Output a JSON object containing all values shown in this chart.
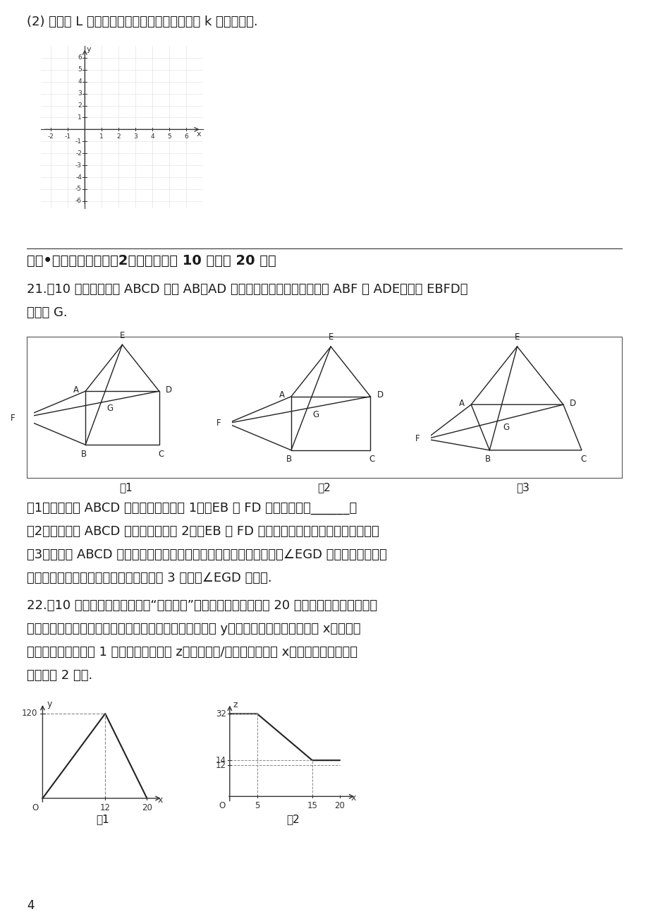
{
  "bg_color": "#ffffff",
  "text_color": "#000000",
  "page_number": "4",
  "section_title": "六、•解答题（本大题共2小题，每小题 10 分，共 20 分）",
  "q2_label": "(2) 当直线 L 与正方形有两个交点时，直接写出 k 的取値范围.",
  "q21_line1": "21.（10 分）以四边形 ABCD 的边 AB、AD 为边分别向外侧作等边三角形 ABF 和 ADE，连接 EBFD，",
  "q21_line2": "交点为 G.",
  "q21_sub1": "（1）当四边形 ABCD 为正方形时（如图 1），EB 和 FD 的数量关系是______；",
  "q21_sub2": "（2）当四边形 ABCD 为矩形时（如图 2），EB 和 FD 具有怎样的数量关系？请加以证明；",
  "q21_sub3a": "（3）四边形 ABCD 由正方形到矩形到一般平行四边形的变化过程中，∠EGD 是否发生变化？如",
  "q21_sub3b": "果改变，请说明理由；如果不变，请在图 3 中求出∠EGD 的度数.",
  "q22_line1": "22.（10 分）李刚家去年养殖的“丰收一号”多宝鱼喜获丰收，上市 20 天全部售完，李刚对销售",
  "q22_line2": "情况进行了跟踪记录，并将记录情况绘成图象，日销售量 y（单位：千克）与上市时间 x（单位：",
  "q22_line3": "天）的函数关系如图 1 所示，多宝鱼价格 z（单位：元/件）与上市时间 x（单位：天）的函数",
  "q22_line4": "关系如图 2 所示.",
  "fig1_cap": "图1",
  "fig2_cap": "图2",
  "fig3_cap": "图3",
  "gr1_cap": "图1",
  "gr2_cap": "图2"
}
